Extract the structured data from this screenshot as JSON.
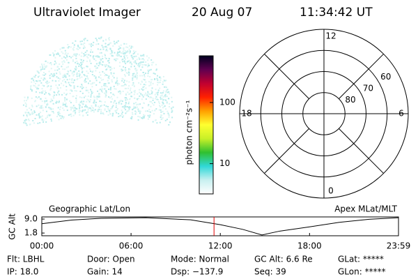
{
  "header": {
    "title": "Ultraviolet Imager",
    "date": "20 Aug 07",
    "time": "11:34:42 UT"
  },
  "chart_data": [
    {
      "type": "colorbar",
      "label": "photon cm⁻²s⁻¹",
      "log": true,
      "ylim": [
        3.2,
        580
      ],
      "yticks": [
        10,
        100
      ],
      "colors": [
        "#ffffff",
        "#c8f0f0",
        "#30d8d8",
        "#30c030",
        "#c8f028",
        "#ffff30",
        "#ffa000",
        "#ff2000",
        "#c00030",
        "#600050",
        "#000020"
      ]
    },
    {
      "type": "polar",
      "rlim": [
        90,
        50
      ],
      "rticks": [
        80,
        70,
        60
      ],
      "angle_ticks": [
        12,
        6,
        0,
        18
      ]
    },
    {
      "type": "line",
      "ylabel": "GC Alt",
      "left_label": "Geographic Lat/Lon",
      "right_label": "Apex MLat/MLT",
      "x": [
        0,
        2,
        4,
        7,
        10,
        12,
        13.5,
        14.8,
        16,
        18,
        20,
        22,
        23.98
      ],
      "values": [
        6.6,
        8.5,
        9.4,
        9.7,
        8.6,
        6.1,
        3.7,
        0.8,
        2.8,
        5.0,
        7.3,
        8.9,
        9.7
      ],
      "xlim": [
        0,
        23.98
      ],
      "xticks": [
        {
          "value": 0,
          "label": "00:00"
        },
        {
          "value": 6,
          "label": "06:00"
        },
        {
          "value": 12,
          "label": "12:00"
        },
        {
          "value": 18,
          "label": "18:00"
        },
        {
          "value": 23.98,
          "label": "23:59"
        }
      ],
      "ylim": [
        0.4,
        10.1
      ],
      "yticks": [
        {
          "value": 9,
          "label": "9.0"
        },
        1.8
      ],
      "marker_x": 11.578,
      "marker_color": "#e00000",
      "color": "#000000"
    }
  ],
  "status": {
    "rows": [
      [
        "Flt: LBHL",
        "Door: Open",
        "Mode: Normal",
        "GC Alt: 6.6 Re",
        "GLat: *****"
      ],
      [
        "IP: 18.0",
        "Gain: 14",
        "Dsp: −137.9",
        "Seq: 39",
        "GLon: *****"
      ]
    ]
  }
}
